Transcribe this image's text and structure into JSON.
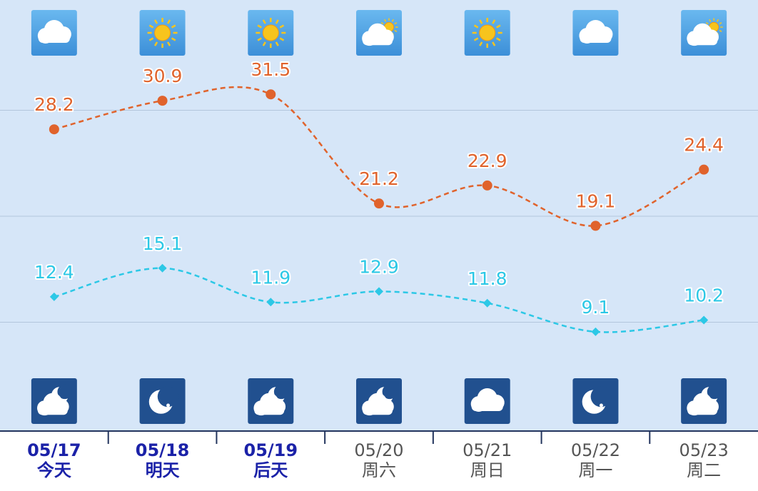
{
  "chart_data": {
    "type": "line",
    "categories": [
      "05/17",
      "05/18",
      "05/19",
      "05/20",
      "05/21",
      "05/22",
      "05/23"
    ],
    "weekdays": [
      "今天",
      "明天",
      "后天",
      "周六",
      "周日",
      "周一",
      "周二"
    ],
    "series": [
      {
        "color": "#e0632c",
        "marker": "circle",
        "values": [
          28.2,
          30.9,
          31.5,
          21.2,
          22.9,
          19.1,
          24.4
        ]
      },
      {
        "color": "#2cc8e6",
        "marker": "diamond",
        "values": [
          12.4,
          15.1,
          11.9,
          12.9,
          11.8,
          9.1,
          10.2
        ]
      }
    ],
    "ylim": [
      0,
      40
    ],
    "grid_lines": [
      10,
      20,
      30
    ]
  }
}
